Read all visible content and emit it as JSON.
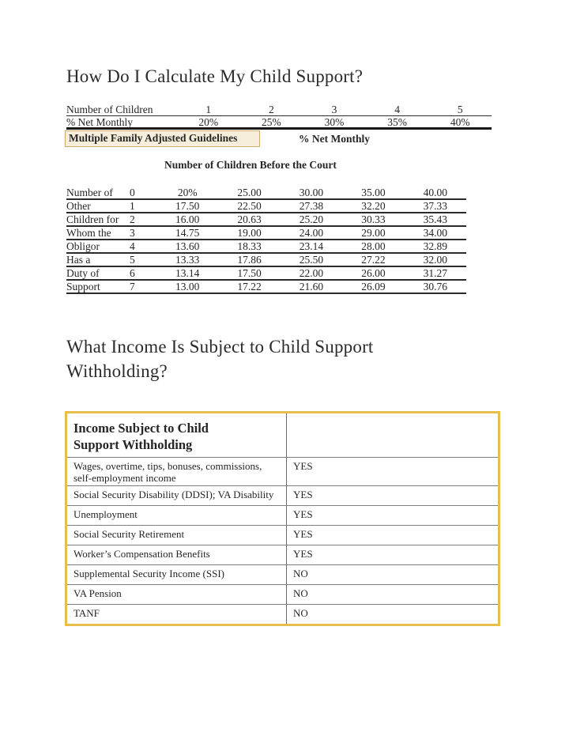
{
  "page": {
    "title1": "How Do I Calculate My Child Support?",
    "title2": "What Income Is Subject to Child Support Withholding?"
  },
  "guidelines_header": {
    "row1_label": "Number of Children",
    "row1_values": [
      "1",
      "2",
      "3",
      "4",
      "5"
    ],
    "row2_label": "% Net Monthly",
    "row2_values": [
      "20%",
      "25%",
      "30%",
      "35%",
      "40%"
    ]
  },
  "multiple_family": {
    "box_label": "Multiple Family Adjusted Guidelines",
    "right_label": "% Net Monthly",
    "table_title": "Number of Children Before the Court",
    "side_phrase": "Number of Other Children for Whom the Obligor Has a Duty of Support",
    "rows": [
      {
        "label": "Number of",
        "index": "0",
        "values": [
          "20%",
          "25.00",
          "30.00",
          "35.00",
          "40.00"
        ]
      },
      {
        "label": "Other",
        "index": "1",
        "values": [
          "17.50",
          "22.50",
          "27.38",
          "32.20",
          "37.33"
        ]
      },
      {
        "label": "Children for",
        "index": "2",
        "values": [
          "16.00",
          "20.63",
          "25.20",
          "30.33",
          "35.43"
        ]
      },
      {
        "label": "Whom the",
        "index": "3",
        "values": [
          "14.75",
          "19.00",
          "24.00",
          "29.00",
          "34.00"
        ]
      },
      {
        "label": "Obligor",
        "index": "4",
        "values": [
          "13.60",
          "18.33",
          "23.14",
          "28.00",
          "32.89"
        ]
      },
      {
        "label": "Has a",
        "index": "5",
        "values": [
          "13.33",
          "17.86",
          "25.50",
          "27.22",
          "32.00"
        ]
      },
      {
        "label": "Duty of",
        "index": "6",
        "values": [
          "13.14",
          "17.50",
          "22.00",
          "26.00",
          "31.27"
        ]
      },
      {
        "label": "Support",
        "index": "7",
        "values": [
          "13.00",
          "17.22",
          "21.60",
          "26.09",
          "30.76"
        ]
      }
    ]
  },
  "income_table": {
    "header": "Income Subject to Child Support Withholding",
    "rows": [
      {
        "label": "Wages, overtime, tips, bonuses, commissions, self-employment income",
        "value": "YES"
      },
      {
        "label": "Social Security Disability (DDSI); VA Disability",
        "value": "YES"
      },
      {
        "label": "Unemployment",
        "value": "YES"
      },
      {
        "label": "Social Security Retirement",
        "value": "YES"
      },
      {
        "label": "Worker’s Compensation Benefits",
        "value": "YES"
      },
      {
        "label": "Supplemental Security Income (SSI)",
        "value": "NO"
      },
      {
        "label": "VA Pension",
        "value": "NO"
      },
      {
        "label": "TANF",
        "value": "NO"
      }
    ]
  },
  "colors": {
    "income_table_border": "#e8bd4f",
    "guidelines_box_bg": "#f6eeda",
    "guidelines_box_border": "#c9a96e",
    "table_rule_dark": "#2b2b2b",
    "table_rule_gray": "#7f7f7f",
    "text": "#262626"
  }
}
